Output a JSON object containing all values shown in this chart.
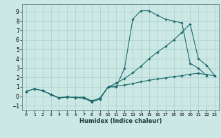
{
  "xlabel": "Humidex (Indice chaleur)",
  "bg_color": "#cce8e5",
  "grid_color": "#aacfcc",
  "line_color": "#1a6b6b",
  "xlim": [
    -0.5,
    23.5
  ],
  "ylim": [
    -1.5,
    9.8
  ],
  "xticks": [
    0,
    1,
    2,
    3,
    4,
    5,
    6,
    7,
    8,
    9,
    10,
    11,
    12,
    13,
    14,
    15,
    16,
    17,
    18,
    19,
    20,
    21,
    22,
    23
  ],
  "yticks": [
    -1,
    0,
    1,
    2,
    3,
    4,
    5,
    6,
    7,
    8,
    9
  ],
  "line1_x": [
    0,
    1,
    2,
    3,
    4,
    5,
    6,
    7,
    8,
    9,
    10,
    11,
    12,
    13,
    14,
    15,
    16,
    17,
    18,
    19,
    20,
    21,
    22
  ],
  "line1_y": [
    0.5,
    0.8,
    0.6,
    0.2,
    -0.2,
    -0.1,
    -0.15,
    -0.2,
    -0.6,
    -0.3,
    1.0,
    1.0,
    3.0,
    8.2,
    9.1,
    9.1,
    8.6,
    8.2,
    8.0,
    7.8,
    3.5,
    3.0,
    2.2
  ],
  "line2_x": [
    0,
    1,
    2,
    3,
    4,
    5,
    6,
    7,
    8,
    9,
    10,
    11,
    12,
    13,
    14,
    15,
    16,
    17,
    18,
    19,
    20,
    21,
    22,
    23
  ],
  "line2_y": [
    0.5,
    0.8,
    0.6,
    0.2,
    -0.15,
    -0.05,
    -0.1,
    -0.1,
    -0.5,
    -0.2,
    1.0,
    1.1,
    1.2,
    1.35,
    1.55,
    1.7,
    1.85,
    1.95,
    2.1,
    2.2,
    2.35,
    2.45,
    2.3,
    2.2
  ],
  "line3_x": [
    0,
    1,
    2,
    3,
    4,
    5,
    6,
    7,
    8,
    9,
    10,
    11,
    12,
    13,
    14,
    15,
    16,
    17,
    18,
    19,
    20,
    21,
    22,
    23
  ],
  "line3_y": [
    0.5,
    0.8,
    0.6,
    0.2,
    -0.15,
    -0.05,
    -0.1,
    -0.1,
    -0.5,
    -0.2,
    1.0,
    1.4,
    1.9,
    2.5,
    3.2,
    4.0,
    4.7,
    5.3,
    6.0,
    6.8,
    7.7,
    4.0,
    3.3,
    2.2
  ]
}
